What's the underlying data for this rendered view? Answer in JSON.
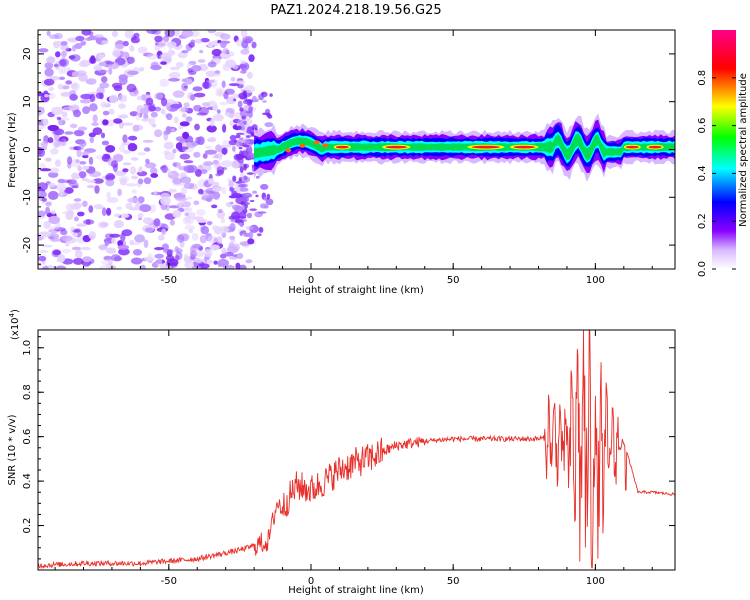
{
  "title": "PAZ1.2024.218.19.56.G25",
  "chart_data": [
    {
      "type": "heatmap",
      "name": "spectrogram",
      "xlabel": "Height of straight line (km)",
      "ylabel": "Frequency (Hz)",
      "xlim": [
        -96,
        128
      ],
      "ylim": [
        -25,
        25
      ],
      "x_ticks": [
        -50,
        0,
        50,
        100
      ],
      "y_ticks": [
        -20,
        -10,
        0,
        10,
        20
      ],
      "colorbar": {
        "label": "Normalized spectral amplitude",
        "ticks": [
          0.0,
          0.2,
          0.4,
          0.6,
          0.8
        ],
        "range": [
          0,
          1
        ],
        "colormap": [
          "#ffffff",
          "#8800ff",
          "#0000ff",
          "#00ffff",
          "#00ff00",
          "#ffff00",
          "#ff0000",
          "#ff0088"
        ]
      },
      "signal_track": {
        "noise_region_x": [
          -96,
          -20
        ],
        "carrier_frequency_hz": 0.5,
        "peak_amplitude": 1.0
      }
    },
    {
      "type": "line",
      "name": "snr",
      "xlabel": "Height of straight line (km)",
      "ylabel": "SNR (10 * v/v)",
      "y_multiplier_label": "(x10",
      "y_multiplier_exp": "4",
      "y_multiplier_close": ")",
      "xlim": [
        -96,
        128
      ],
      "ylim": [
        0,
        1.08
      ],
      "x_ticks": [
        -50,
        0,
        50,
        100
      ],
      "y_ticks": [
        0.2,
        0.4,
        0.6,
        0.8,
        1.0
      ],
      "color": "#e8302a",
      "series": [
        {
          "x": [
            -96,
            -80,
            -60,
            -40,
            -25,
            -15,
            -12,
            -10,
            -5,
            0,
            5,
            10,
            15,
            20,
            25,
            30,
            40,
            50,
            60,
            70,
            80,
            85,
            90,
            95,
            100,
            105,
            108,
            110,
            115,
            120,
            128
          ],
          "values": [
            0.02,
            0.03,
            0.03,
            0.05,
            0.09,
            0.13,
            0.3,
            0.28,
            0.38,
            0.36,
            0.4,
            0.45,
            0.48,
            0.5,
            0.53,
            0.56,
            0.58,
            0.59,
            0.59,
            0.59,
            0.59,
            0.6,
            0.55,
            0.62,
            0.45,
            0.56,
            0.55,
            0.58,
            0.35,
            0.35,
            0.34
          ]
        }
      ]
    }
  ]
}
